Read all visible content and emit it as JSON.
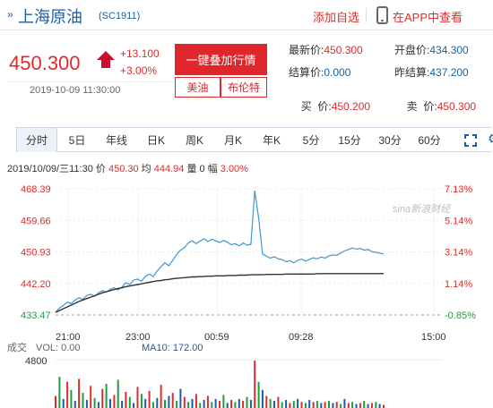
{
  "header": {
    "title_arrows": "»",
    "title": "上海原油",
    "code": "(SC1911)",
    "add_watch": "添加自选",
    "view_app": "在APP中查看",
    "phone_icon": "phone-icon"
  },
  "quote": {
    "price": "450.300",
    "change_abs": "+13.100",
    "change_pct": "+3.00%",
    "time": "2019-10-09 11:30:00",
    "onekey_label": "一键叠加行情",
    "pill_us": "美油",
    "pill_brent": "布伦特",
    "latest_label": "最新价:",
    "latest_value": "450.300",
    "open_label": "开盘价:",
    "open_value": "434.300",
    "settle_label": "结算价:",
    "settle_value": "0.000",
    "prev_settle_label": "昨结算:",
    "prev_settle_value": "437.200",
    "bid_label": "买  价:",
    "bid_value": "450.200",
    "ask_label": "卖  价:",
    "ask_value": "450.300"
  },
  "tabs": [
    "分时",
    "5日",
    "年线",
    "日K",
    "周K",
    "月K",
    "年K",
    "5分",
    "15分",
    "30分",
    "60分"
  ],
  "info": {
    "date": "2019/10/09/三11:30",
    "price_label": "价",
    "price": "450.30",
    "avg_label": "均",
    "avg": "444.94",
    "vol_label": "量",
    "vol": "0",
    "amp_label": "幅",
    "amp": "3.00%"
  },
  "colors": {
    "up": "#e02b2b",
    "down": "#1e9e3e",
    "brand": "#1a5ea8",
    "price_line": "#3f97d1",
    "avg_line": "#333333",
    "button": "#e0252b"
  },
  "watermark": "sina新浪财经",
  "chart_data": {
    "type": "line",
    "y_left_ticks": [
      "468.39",
      "459.66",
      "450.93",
      "442.20",
      "433.47"
    ],
    "y_right_ticks": [
      "7.13%",
      "5.14%",
      "3.14%",
      "1.14%",
      "-0.85%"
    ],
    "x_ticks": [
      "21:00",
      "23:00",
      "00:59",
      "09:28",
      "15:00"
    ],
    "ylim": [
      433.47,
      468.39
    ],
    "base_price": 437.2,
    "series": [
      {
        "values": [
          434.2,
          435.4,
          436.1,
          437.0,
          436.6,
          437.6,
          438.2,
          437.8,
          438.9,
          439.2,
          438.6,
          439.6,
          440.2,
          439.7,
          440.6,
          441.0,
          440.4,
          441.2,
          442.4,
          441.9,
          443.1,
          443.4,
          442.8,
          444.2,
          444.8,
          444.1,
          445.6,
          446.8,
          447.9,
          447.1,
          448.6,
          450.2,
          451.4,
          452.1,
          453.4,
          454.0,
          453.2,
          453.9,
          454.6,
          453.8,
          454.4,
          454.0,
          453.5,
          454.1,
          453.6,
          452.9,
          453.2,
          452.6,
          453.4,
          452.8,
          453.0,
          467.9,
          460.2,
          450.4,
          449.7,
          449.2,
          449.6,
          449.0,
          448.8,
          448.2,
          448.5,
          447.9,
          448.6,
          448.9,
          448.4,
          448.8,
          449.3,
          449.0,
          449.5,
          449.2,
          449.8,
          450.1,
          450.0,
          450.6,
          451.2,
          451.6,
          452.0,
          451.7,
          451.9,
          451.4,
          451.6,
          451.0,
          450.8,
          450.6,
          450.3
        ]
      },
      {
        "values": [
          434.2,
          434.7,
          435.2,
          435.7,
          436.2,
          436.7,
          437.2,
          437.6,
          438.0,
          438.4,
          438.8,
          439.2,
          439.6,
          439.9,
          440.2,
          440.5,
          440.8,
          441.0,
          441.3,
          441.5,
          441.7,
          441.9,
          442.1,
          442.3,
          442.5,
          442.7,
          442.9,
          443.0,
          443.2,
          443.3,
          443.5,
          443.6,
          443.7,
          443.8,
          443.9,
          444.0,
          444.0,
          444.1,
          444.1,
          444.2,
          444.2,
          444.3,
          444.3,
          444.3,
          444.4,
          444.4,
          444.4,
          444.5,
          444.5,
          444.5,
          444.6,
          444.6,
          444.6,
          444.6,
          444.7,
          444.7,
          444.7,
          444.7,
          444.7,
          444.8,
          444.8,
          444.8,
          444.8,
          444.8,
          444.8,
          444.8,
          444.8,
          444.9,
          444.9,
          444.9,
          444.9,
          444.9,
          444.9,
          444.9,
          444.9,
          444.9,
          444.9,
          444.9,
          444.9,
          444.9,
          444.9,
          444.9,
          444.9,
          444.9,
          444.94
        ]
      }
    ],
    "volume": {
      "label": "成交",
      "vol_label": "VOL: 0.00",
      "ma10_label": "MA10: 172.00",
      "ymax_label": "4800",
      "values": [
        1200,
        3100,
        900,
        2600,
        1800,
        700,
        2900,
        1500,
        800,
        2200,
        1000,
        600,
        1900,
        2400,
        900,
        1300,
        2800,
        700,
        1600,
        1100,
        500,
        2100,
        1400,
        900,
        1700,
        600,
        1000,
        2300,
        800,
        1200,
        1500,
        700,
        1900,
        1100,
        600,
        900,
        1400,
        500,
        800,
        1200,
        600,
        900,
        700,
        1300,
        500,
        800,
        600,
        900,
        700,
        1100,
        800,
        4700,
        2600,
        1800,
        1200,
        900,
        700,
        1100,
        600,
        800,
        500,
        700,
        900,
        600,
        500,
        800,
        600,
        700,
        500,
        600,
        700,
        500,
        600,
        400,
        900,
        500,
        600,
        400,
        500,
        700,
        400,
        500,
        600,
        400,
        300
      ]
    }
  }
}
